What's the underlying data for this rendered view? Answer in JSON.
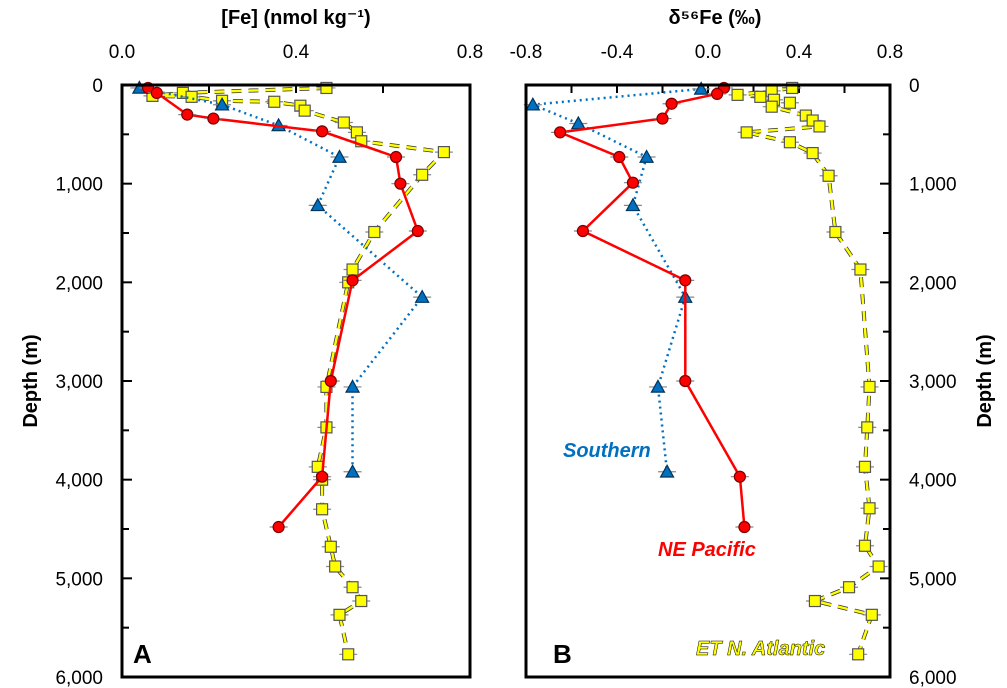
{
  "chart_data": [
    {
      "panel_label": "A",
      "type": "line",
      "xlabel": "[Fe] (nmol kg⁻¹)",
      "ylabel": "Depth (m)",
      "xlim": [
        0,
        0.8
      ],
      "ylim": [
        6000,
        0
      ],
      "xticks": [
        "0.0",
        "0.4",
        "0.8"
      ],
      "yticks": [
        "0",
        "1,000",
        "2,000",
        "3,000",
        "4,000",
        "5,000",
        "6,000"
      ],
      "series": [
        {
          "color": "#0070C0",
          "marker": "triangle",
          "style": "dotted",
          "points": [
            [
              0.04,
              30
            ],
            [
              0.23,
              200
            ],
            [
              0.36,
              410
            ],
            [
              0.5,
              730
            ],
            [
              0.45,
              1220
            ],
            [
              0.69,
              2150
            ],
            [
              0.53,
              3060
            ],
            [
              0.53,
              3920
            ]
          ]
        },
        {
          "color": "#FF0000",
          "marker": "circle",
          "style": "solid",
          "points": [
            [
              0.06,
              30
            ],
            [
              0.08,
              80
            ],
            [
              0.15,
              300
            ],
            [
              0.21,
              340
            ],
            [
              0.46,
              470
            ],
            [
              0.63,
              730
            ],
            [
              0.64,
              1000
            ],
            [
              0.68,
              1480
            ],
            [
              0.53,
              1980
            ],
            [
              0.48,
              3000
            ],
            [
              0.46,
              3970
            ],
            [
              0.36,
              4480
            ]
          ]
        },
        {
          "color": "#FFFF00",
          "marker": "square",
          "style": "dashed",
          "points": [
            [
              0.47,
              30
            ],
            [
              0.14,
              80
            ],
            [
              0.07,
              110
            ],
            [
              0.16,
              120
            ],
            [
              0.23,
              160
            ],
            [
              0.35,
              170
            ],
            [
              0.41,
              210
            ],
            [
              0.42,
              260
            ],
            [
              0.51,
              380
            ],
            [
              0.54,
              480
            ],
            [
              0.55,
              570
            ],
            [
              0.74,
              680
            ],
            [
              0.69,
              910
            ],
            [
              0.58,
              1490
            ],
            [
              0.53,
              1870
            ],
            [
              0.52,
              2000
            ],
            [
              0.47,
              3060
            ],
            [
              0.47,
              3470
            ],
            [
              0.45,
              3870
            ],
            [
              0.46,
              4000
            ],
            [
              0.46,
              4300
            ],
            [
              0.48,
              4680
            ],
            [
              0.49,
              4880
            ],
            [
              0.53,
              5090
            ],
            [
              0.55,
              5230
            ],
            [
              0.5,
              5370
            ],
            [
              0.52,
              5770
            ]
          ]
        }
      ]
    },
    {
      "panel_label": "B",
      "type": "line",
      "xlabel": "δ⁵⁶Fe (‰)",
      "ylabel": "Depth (m)",
      "xlim": [
        -0.8,
        0.8
      ],
      "ylim": [
        6000,
        0
      ],
      "xticks": [
        "-0.8",
        "-0.4",
        "0.0",
        "0.4",
        "0.8"
      ],
      "yticks": [
        "0",
        "1,000",
        "2,000",
        "3,000",
        "4,000",
        "5,000",
        "6,000"
      ],
      "annotations": [
        "Southern",
        "NE Pacific",
        "ET N. Atlantic"
      ],
      "series": [
        {
          "name": "Southern",
          "color": "#0070C0",
          "marker": "triangle",
          "style": "dotted",
          "points": [
            [
              -0.03,
              40
            ],
            [
              -0.77,
              200
            ],
            [
              -0.57,
              390
            ],
            [
              -0.27,
              730
            ],
            [
              -0.33,
              1220
            ],
            [
              -0.1,
              2150
            ],
            [
              -0.22,
              3060
            ],
            [
              -0.18,
              3920
            ]
          ]
        },
        {
          "name": "NE Pacific",
          "color": "#FF0000",
          "marker": "circle",
          "style": "solid",
          "points": [
            [
              0.07,
              30
            ],
            [
              0.04,
              90
            ],
            [
              -0.16,
              190
            ],
            [
              -0.2,
              340
            ],
            [
              -0.65,
              480
            ],
            [
              -0.39,
              730
            ],
            [
              -0.33,
              990
            ],
            [
              -0.55,
              1480
            ],
            [
              -0.1,
              1980
            ],
            [
              -0.1,
              3000
            ],
            [
              0.14,
              3970
            ],
            [
              0.16,
              4480
            ]
          ]
        },
        {
          "name": "ET N. Atlantic",
          "color": "#FFFF00",
          "marker": "square",
          "style": "dashed",
          "points": [
            [
              0.37,
              30
            ],
            [
              0.28,
              60
            ],
            [
              0.13,
              100
            ],
            [
              0.23,
              120
            ],
            [
              0.29,
              150
            ],
            [
              0.36,
              180
            ],
            [
              0.28,
              220
            ],
            [
              0.43,
              310
            ],
            [
              0.46,
              360
            ],
            [
              0.49,
              420
            ],
            [
              0.17,
              480
            ],
            [
              0.36,
              580
            ],
            [
              0.46,
              690
            ],
            [
              0.53,
              920
            ],
            [
              0.56,
              1490
            ],
            [
              0.67,
              1870
            ],
            [
              0.71,
              3060
            ],
            [
              0.7,
              3470
            ],
            [
              0.69,
              3870
            ],
            [
              0.71,
              4290
            ],
            [
              0.69,
              4670
            ],
            [
              0.75,
              4880
            ],
            [
              0.62,
              5090
            ],
            [
              0.47,
              5230
            ],
            [
              0.72,
              5370
            ],
            [
              0.66,
              5770
            ]
          ]
        }
      ]
    }
  ]
}
